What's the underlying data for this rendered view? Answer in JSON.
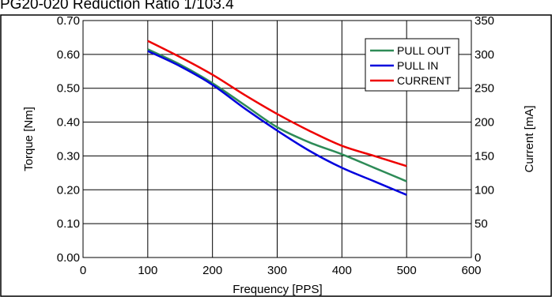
{
  "chart_data": {
    "type": "line",
    "title": "PG20-020 Reduction Ratio 1/103.4",
    "xlabel": "Frequency  [PPS]",
    "ylabel": "Torque [Nm]",
    "y2label": "Current [mA]",
    "xlim": [
      0,
      600
    ],
    "ylim": [
      0,
      0.7
    ],
    "y2lim": [
      0,
      350
    ],
    "xticks": [
      "0",
      "100",
      "200",
      "300",
      "400",
      "500",
      "600"
    ],
    "yticks": [
      "0.00",
      "0.10",
      "0.20",
      "0.30",
      "0.40",
      "0.50",
      "0.60",
      "0.70"
    ],
    "y2ticks": [
      "0",
      "50",
      "100",
      "150",
      "200",
      "250",
      "300",
      "350"
    ],
    "grid": true,
    "legend": "top-right",
    "series": [
      {
        "name": "PULL OUT",
        "axis": "left",
        "color": "#2e8b57",
        "x": [
          100,
          150,
          200,
          250,
          300,
          350,
          400,
          450,
          500
        ],
        "y": [
          0.615,
          0.57,
          0.515,
          0.45,
          0.385,
          0.34,
          0.305,
          0.265,
          0.225
        ]
      },
      {
        "name": "PULL IN",
        "axis": "left",
        "color": "#0000dd",
        "x": [
          100,
          150,
          200,
          250,
          300,
          350,
          400,
          450,
          500
        ],
        "y": [
          0.61,
          0.565,
          0.51,
          0.44,
          0.375,
          0.315,
          0.265,
          0.225,
          0.185
        ]
      },
      {
        "name": "CURRENT",
        "axis": "right",
        "color": "#ee0000",
        "x": [
          100,
          150,
          200,
          250,
          300,
          350,
          400,
          450,
          500
        ],
        "y": [
          320,
          296,
          270,
          240,
          212,
          187,
          165,
          150,
          135
        ]
      }
    ]
  }
}
